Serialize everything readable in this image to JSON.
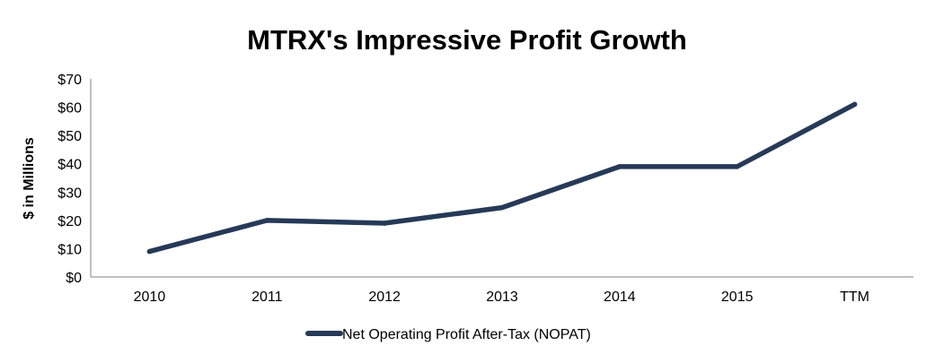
{
  "chart_data": {
    "type": "line",
    "title": "MTRX's Impressive Profit Growth",
    "xlabel": "",
    "ylabel": "$ in Millions",
    "categories": [
      "2010",
      "2011",
      "2012",
      "2013",
      "2014",
      "2015",
      "TTM"
    ],
    "series": [
      {
        "name": "Net Operating Profit After-Tax (NOPAT)",
        "values": [
          9,
          20,
          19,
          24.5,
          39,
          39,
          61
        ],
        "color": "#263a57"
      }
    ],
    "ylim": [
      0,
      70
    ],
    "yticks": [
      0,
      10,
      20,
      30,
      40,
      50,
      60,
      70
    ],
    "ytick_labels": [
      "$0",
      "$10",
      "$20",
      "$30",
      "$40",
      "$50",
      "$60",
      "$70"
    ],
    "grid": false,
    "legend_position": "bottom-center"
  }
}
